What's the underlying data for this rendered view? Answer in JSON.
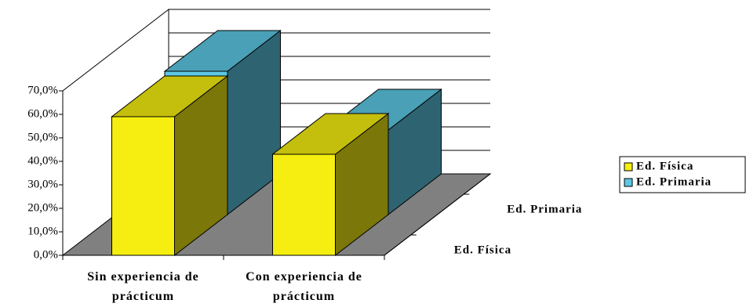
{
  "chart_data": {
    "type": "bar3d",
    "categories": [
      "Sin experiencia de prácticum",
      "Con experiencia de prácticum"
    ],
    "series": [
      {
        "name": "Ed. Física",
        "color": "#f5ee10",
        "values": [
          59,
          43
        ]
      },
      {
        "name": "Ed. Primaria",
        "color": "#5cc8e4",
        "values": [
          61,
          36
        ]
      }
    ],
    "ylim": [
      0,
      70
    ],
    "yticks": [
      {
        "value": 0,
        "label": "0,0%"
      },
      {
        "value": 10,
        "label": "10,0%"
      },
      {
        "value": 20,
        "label": "20,0%"
      },
      {
        "value": 30,
        "label": "30,0%"
      },
      {
        "value": 40,
        "label": "40,0%"
      },
      {
        "value": 50,
        "label": "50,0%"
      },
      {
        "value": 60,
        "label": "60,0%"
      },
      {
        "value": 70,
        "label": "70,0%"
      }
    ],
    "grid": true,
    "legend": "right"
  }
}
